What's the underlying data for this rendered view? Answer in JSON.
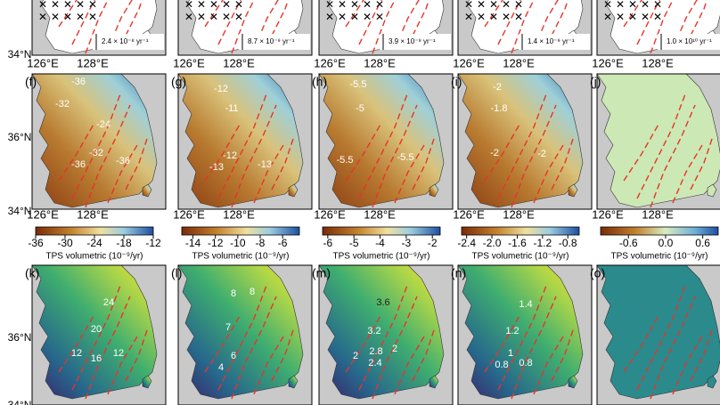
{
  "top_scales": [
    "2.4 × 10⁻⁸ yr⁻¹",
    "8.7 × 10⁻⁹ yr⁻¹",
    "3.9 × 10⁻⁹ yr⁻¹",
    "1.4 × 10⁻⁹ yr⁻¹",
    "1.0 × 10¹⁰ yr⁻¹"
  ],
  "lat_labels": {
    "lat34": "34°N",
    "lat36": "36°N"
  },
  "lon_labels": {
    "lon126": "126°E",
    "lon128": "128°E"
  },
  "row2": {
    "panels": [
      {
        "letter": "(f)",
        "contours": [
          -36,
          -32,
          -24,
          -32,
          -36,
          -36
        ]
      },
      {
        "letter": "(g)",
        "contours": [
          -12,
          -11,
          -12,
          -13,
          -13
        ]
      },
      {
        "letter": "(h)",
        "contours": [
          -5.5,
          -5,
          -5.5,
          -5.5
        ]
      },
      {
        "letter": "(i)",
        "contours": [
          -2,
          -1.8,
          -2,
          -2
        ]
      },
      {
        "letter": "(j)",
        "contours": []
      }
    ]
  },
  "row3": {
    "panels": [
      {
        "letter": "(k)",
        "contours": [
          24,
          20,
          12,
          16,
          12
        ]
      },
      {
        "letter": "(l)",
        "contours": [
          8,
          8,
          7,
          6,
          4
        ]
      },
      {
        "letter": "(m)",
        "contours": [
          3.6,
          3.2,
          2.8,
          2,
          2.4,
          2
        ]
      },
      {
        "letter": "(n)",
        "contours": [
          1.4,
          1.2,
          1,
          0.8,
          0.8
        ]
      },
      {
        "letter": "(o)",
        "contours": []
      }
    ]
  },
  "colorbars": [
    {
      "title": "TPS volumetric (10⁻⁹/yr)",
      "lim": [
        -36,
        -12
      ],
      "ticks": [
        -36,
        -30,
        -24,
        -18,
        -12
      ]
    },
    {
      "title": "TPS volumetric (10⁻⁹/yr)",
      "lim": [
        -15,
        -4.5
      ],
      "ticks": [
        -14,
        -12,
        -10,
        -8,
        -6
      ]
    },
    {
      "title": "TPS volumetric (10⁻⁹/yr)",
      "lim": [
        -6.2,
        -1.7
      ],
      "ticks": [
        -6,
        -5,
        -4,
        -3,
        -2
      ]
    },
    {
      "title": "TPS volumetric (10⁻⁹/yr)",
      "lim": [
        -2.48,
        -0.62
      ],
      "ticks": [
        {
          "value": -2.4,
          "label": "-2.4"
        },
        {
          "value": -2,
          "label": "-2.0"
        },
        {
          "value": -1.6,
          "label": "-1.6"
        },
        {
          "value": -1.2,
          "label": "-1.2"
        },
        {
          "value": -0.8,
          "label": "-0.8"
        }
      ]
    },
    {
      "title": "TPS volumetric (10⁻⁹/yr)",
      "lim": [
        -1.05,
        0.85
      ],
      "ticks": [
        -0.6,
        {
          "value": 0,
          "label": "0.0"
        },
        0.6
      ]
    }
  ]
}
